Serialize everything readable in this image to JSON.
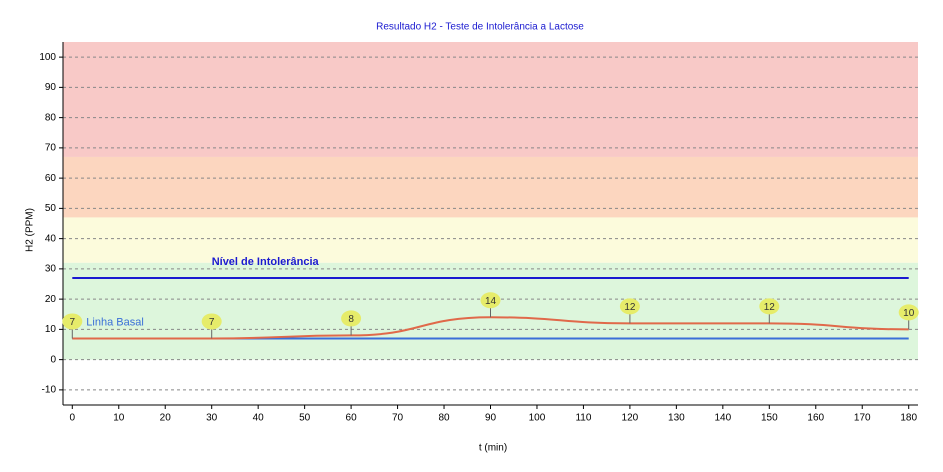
{
  "chart_data": {
    "type": "line",
    "title": "Resultado H2 - Teste de Intolerância a Lactose",
    "x_label": "t (min)",
    "y_label": "H2 (PPM)",
    "x": [
      0,
      30,
      60,
      90,
      120,
      150,
      180
    ],
    "series": [
      {
        "name": "H2",
        "color": "#e0694a",
        "values": [
          7,
          7,
          8,
          14,
          12,
          12,
          10
        ]
      }
    ],
    "reference_lines": [
      {
        "label": "Linha Basal",
        "value": 7,
        "color": "#3a6fd8"
      },
      {
        "label": "Nível de Intolerância",
        "value": 27,
        "color": "#1a1ad0"
      }
    ],
    "bands": [
      {
        "from": 67,
        "to": 105,
        "color": "#f8c9c7"
      },
      {
        "from": 47,
        "to": 67,
        "color": "#fcd6bf"
      },
      {
        "from": 32,
        "to": 47,
        "color": "#fcfbdc"
      },
      {
        "from": 0,
        "to": 32,
        "color": "#ddf6dc"
      }
    ],
    "xlim": [
      -2,
      182
    ],
    "ylim": [
      -15,
      105
    ],
    "xticks": [
      0,
      10,
      20,
      30,
      40,
      50,
      60,
      70,
      80,
      90,
      100,
      110,
      120,
      130,
      140,
      150,
      160,
      170,
      180
    ],
    "yticks": [
      -10,
      0,
      10,
      20,
      30,
      40,
      50,
      60,
      70,
      80,
      90,
      100
    ],
    "grid": true
  }
}
